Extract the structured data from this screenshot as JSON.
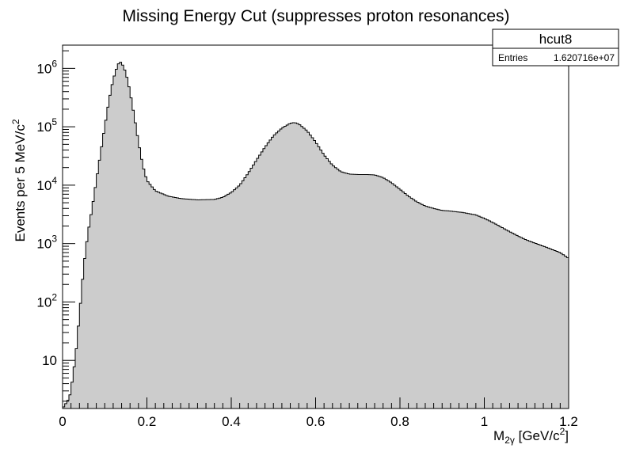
{
  "chart_data": {
    "type": "histogram",
    "title": "Missing Energy Cut (suppresses proton resonances)",
    "xlabel": {
      "main": "M",
      "sub": "2γ",
      "unit_pre": " [GeV/c",
      "sup": "2",
      "unit_post": "]"
    },
    "ylabel": {
      "pre": "Events per 5 MeV/c",
      "sup": "2"
    },
    "xlim": [
      0,
      1.2
    ],
    "ylim": [
      1.5,
      2500000
    ],
    "yscale": "log",
    "bin_width": 0.005,
    "fill_color": "#cccccc",
    "line_color": "#000000",
    "grid": false,
    "x_ticks": [
      {
        "value": 0,
        "label": "0"
      },
      {
        "value": 0.2,
        "label": "0.2"
      },
      {
        "value": 0.4,
        "label": "0.4"
      },
      {
        "value": 0.6,
        "label": "0.6"
      },
      {
        "value": 0.8,
        "label": "0.8"
      },
      {
        "value": 1.0,
        "label": "1"
      },
      {
        "value": 1.2,
        "label": "1.2"
      }
    ],
    "y_ticks": [
      {
        "value": 10,
        "base": "10",
        "exp": ""
      },
      {
        "value": 100,
        "base": "10",
        "exp": "2"
      },
      {
        "value": 1000,
        "base": "10",
        "exp": "3"
      },
      {
        "value": 10000,
        "base": "10",
        "exp": "4"
      },
      {
        "value": 100000,
        "base": "10",
        "exp": "5"
      },
      {
        "value": 1000000,
        "base": "10",
        "exp": "6"
      }
    ],
    "anchors": [
      [
        0.0,
        1.5
      ],
      [
        0.015,
        2.2
      ],
      [
        0.02,
        3
      ],
      [
        0.025,
        6
      ],
      [
        0.03,
        10
      ],
      [
        0.035,
        25
      ],
      [
        0.04,
        60
      ],
      [
        0.045,
        150
      ],
      [
        0.05,
        400
      ],
      [
        0.06,
        1500
      ],
      [
        0.07,
        4000
      ],
      [
        0.08,
        12000
      ],
      [
        0.09,
        35000
      ],
      [
        0.1,
        100000
      ],
      [
        0.11,
        280000
      ],
      [
        0.12,
        650000
      ],
      [
        0.13,
        1100000
      ],
      [
        0.135,
        1300000
      ],
      [
        0.14,
        1250000
      ],
      [
        0.15,
        850000
      ],
      [
        0.16,
        400000
      ],
      [
        0.17,
        150000
      ],
      [
        0.18,
        55000
      ],
      [
        0.19,
        22000
      ],
      [
        0.2,
        12000
      ],
      [
        0.22,
        8000
      ],
      [
        0.25,
        6500
      ],
      [
        0.28,
        5900
      ],
      [
        0.32,
        5600
      ],
      [
        0.36,
        5700
      ],
      [
        0.38,
        6200
      ],
      [
        0.4,
        7500
      ],
      [
        0.42,
        10000
      ],
      [
        0.44,
        16000
      ],
      [
        0.46,
        27000
      ],
      [
        0.48,
        45000
      ],
      [
        0.5,
        70000
      ],
      [
        0.52,
        95000
      ],
      [
        0.54,
        115000
      ],
      [
        0.55,
        118000
      ],
      [
        0.56,
        112000
      ],
      [
        0.58,
        85000
      ],
      [
        0.6,
        55000
      ],
      [
        0.62,
        33000
      ],
      [
        0.64,
        22000
      ],
      [
        0.66,
        17000
      ],
      [
        0.68,
        15500
      ],
      [
        0.7,
        15200
      ],
      [
        0.72,
        15200
      ],
      [
        0.74,
        15000
      ],
      [
        0.76,
        13500
      ],
      [
        0.78,
        11000
      ],
      [
        0.8,
        8500
      ],
      [
        0.82,
        6500
      ],
      [
        0.84,
        5200
      ],
      [
        0.86,
        4400
      ],
      [
        0.88,
        4000
      ],
      [
        0.9,
        3700
      ],
      [
        0.92,
        3600
      ],
      [
        0.95,
        3400
      ],
      [
        0.98,
        3100
      ],
      [
        1.0,
        2700
      ],
      [
        1.02,
        2300
      ],
      [
        1.05,
        1750
      ],
      [
        1.08,
        1350
      ],
      [
        1.1,
        1150
      ],
      [
        1.15,
        850
      ],
      [
        1.18,
        700
      ],
      [
        1.2,
        560
      ]
    ]
  },
  "stats_box": {
    "title": "hcut8",
    "rows": [
      {
        "label": "Entries",
        "value": "1.620716e+07"
      }
    ]
  }
}
